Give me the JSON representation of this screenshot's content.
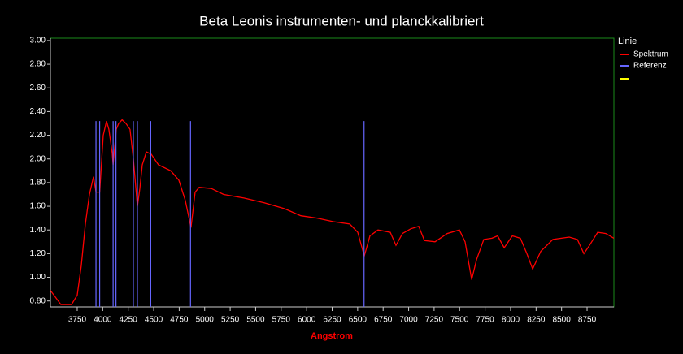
{
  "chart_data": {
    "type": "line",
    "title": "Beta Leonis instrumenten- und planckkalibriert",
    "x_label": "Angstrom",
    "legend_title": "Linie",
    "legend": "right",
    "xlim": [
      3487,
      9013
    ],
    "ylim": [
      0.75,
      3.02
    ],
    "xticks": [
      3750,
      4000,
      4250,
      4500,
      4750,
      5000,
      5250,
      5500,
      5750,
      6000,
      6250,
      6500,
      6750,
      7000,
      7250,
      7500,
      7750,
      8000,
      8250,
      8500,
      8750
    ],
    "yticks": [
      {
        "value": 0.8,
        "label": "0.80"
      },
      {
        "value": 1.0,
        "label": "1.00"
      },
      {
        "value": 1.2,
        "label": "1.20"
      },
      {
        "value": 1.4,
        "label": "1.40"
      },
      {
        "value": 1.6,
        "label": "1.60"
      },
      {
        "value": 1.8,
        "label": "1.80"
      },
      {
        "value": 2.0,
        "label": "2.00"
      },
      {
        "value": 2.2,
        "label": "2.20"
      },
      {
        "value": 2.4,
        "label": "2.40"
      },
      {
        "value": 2.6,
        "label": "2.60"
      },
      {
        "value": 2.8,
        "label": "2.80"
      },
      {
        "value": 3.0,
        "label": "3.00"
      }
    ],
    "series": [
      {
        "name": "Spektrum",
        "color": "#ff0000",
        "style": "line",
        "x": [
          3487,
          3590,
          3694,
          3750,
          3790,
          3830,
          3870,
          3910,
          3934,
          3970,
          4005,
          4037,
          4060,
          4093,
          4102,
          4133,
          4157,
          4190,
          4228,
          4268,
          4300,
          4340,
          4364,
          4388,
          4428,
          4476,
          4547,
          4667,
          4747,
          4810,
          4866,
          4906,
          4946,
          5066,
          5186,
          5385,
          5584,
          5783,
          5943,
          6102,
          6262,
          6422,
          6501,
          6565,
          6621,
          6700,
          6820,
          6876,
          6940,
          7020,
          7099,
          7155,
          7259,
          7378,
          7498,
          7554,
          7618,
          7666,
          7737,
          7817,
          7873,
          7937,
          8017,
          8096,
          8160,
          8216,
          8296,
          8415,
          8575,
          8655,
          8719,
          8774,
          8854,
          8934,
          9013
        ],
        "values": [
          0.89,
          0.77,
          0.77,
          0.85,
          1.1,
          1.45,
          1.7,
          1.85,
          1.72,
          1.72,
          2.2,
          2.32,
          2.25,
          2.05,
          1.95,
          2.25,
          2.3,
          2.33,
          2.3,
          2.25,
          2.0,
          1.6,
          1.75,
          1.95,
          2.06,
          2.04,
          1.95,
          1.9,
          1.82,
          1.65,
          1.42,
          1.72,
          1.76,
          1.75,
          1.7,
          1.67,
          1.63,
          1.58,
          1.52,
          1.5,
          1.47,
          1.45,
          1.38,
          1.18,
          1.35,
          1.4,
          1.38,
          1.27,
          1.37,
          1.41,
          1.43,
          1.31,
          1.3,
          1.37,
          1.4,
          1.3,
          0.98,
          1.15,
          1.32,
          1.33,
          1.35,
          1.25,
          1.35,
          1.33,
          1.2,
          1.07,
          1.22,
          1.32,
          1.34,
          1.32,
          1.2,
          1.27,
          1.38,
          1.37,
          1.33
        ]
      },
      {
        "name": "Referenz",
        "color": "#6666ff",
        "style": "vlines",
        "x": [
          3934,
          3970,
          4102,
          4130,
          4300,
          4340,
          4471,
          4861,
          6563
        ],
        "values": [
          2.32,
          2.32,
          2.32,
          2.32,
          2.32,
          2.32,
          2.32,
          2.32,
          2.32
        ]
      }
    ]
  }
}
